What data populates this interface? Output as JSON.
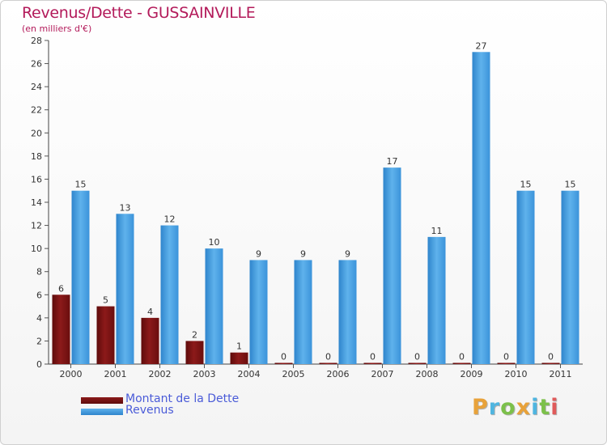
{
  "chart_data": {
    "type": "bar",
    "title": "Revenus/Dette - GUSSAINVILLE",
    "subtitle": "(en milliers d'€)",
    "categories": [
      "2000",
      "2001",
      "2002",
      "2003",
      "2004",
      "2005",
      "2006",
      "2007",
      "2008",
      "2009",
      "2010",
      "2011"
    ],
    "series": [
      {
        "name": "Montant de la Dette",
        "color": "#7a1010",
        "values": [
          6,
          5,
          4,
          2,
          1,
          0,
          0,
          0,
          0,
          0,
          0,
          0
        ]
      },
      {
        "name": "Revenus",
        "color": "#3d9be0",
        "values": [
          15,
          13,
          12,
          10,
          9,
          9,
          9,
          17,
          11,
          27,
          15,
          15
        ]
      }
    ],
    "ylim": [
      0,
      28
    ],
    "yticks": [
      "0",
      "2",
      "4",
      "6",
      "8",
      "10",
      "12",
      "14",
      "16",
      "18",
      "20",
      "22",
      "24",
      "26",
      "28"
    ],
    "grid": false,
    "legend": "bottom-left"
  },
  "brand": {
    "letters": [
      "P",
      "r",
      "o",
      "x",
      "i",
      "t",
      "i"
    ],
    "colors": [
      "#e8a23a",
      "#4fb5e0",
      "#7cc04a",
      "#e8a23a",
      "#4fb5e0",
      "#7cc04a",
      "#e05a5a"
    ]
  }
}
